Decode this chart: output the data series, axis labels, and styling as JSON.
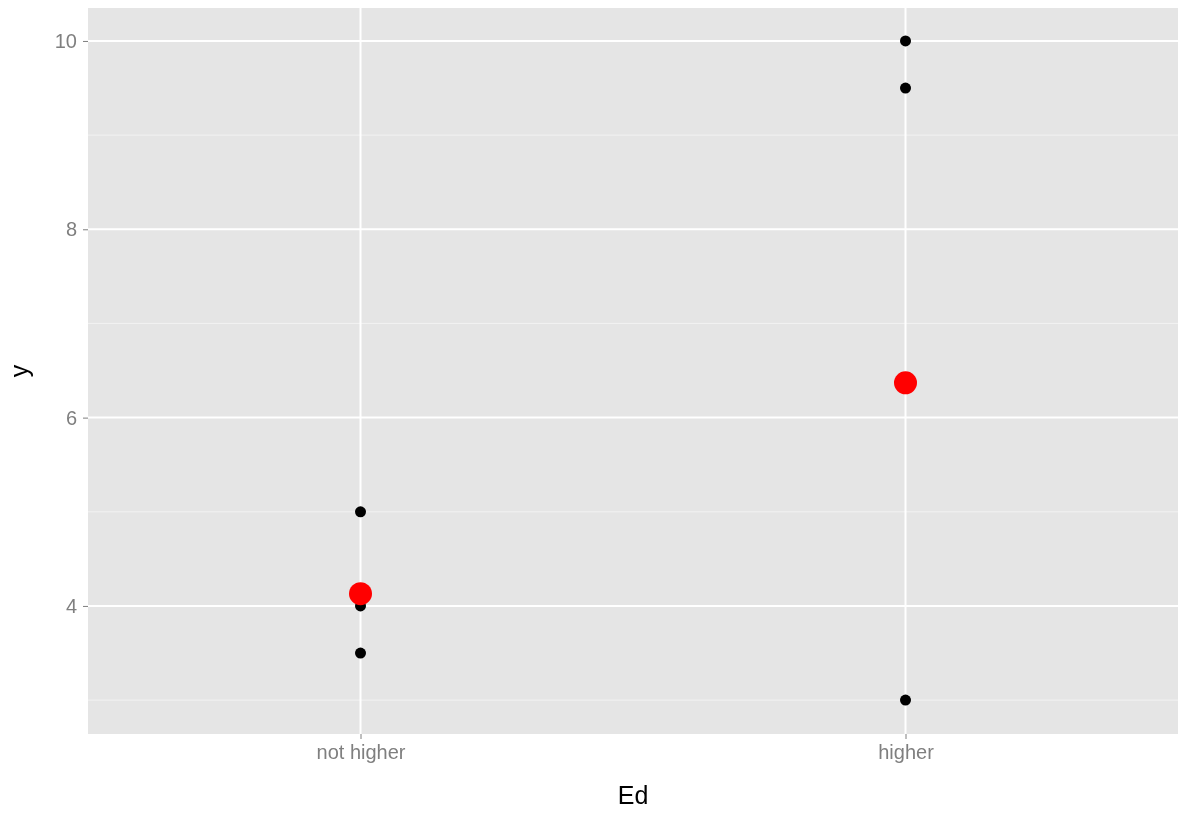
{
  "chart_data": {
    "type": "scatter",
    "xlabel": "Ed",
    "ylabel": "y",
    "categories": [
      "not higher",
      "higher"
    ],
    "series": [
      {
        "color": "#000000",
        "x": [
          "not higher",
          "not higher",
          "not higher",
          "higher",
          "higher",
          "higher"
        ],
        "values": [
          5,
          4,
          3.5,
          10,
          9.5,
          3
        ],
        "marker": "circle"
      },
      {
        "color": "#ff0000",
        "x": [
          "not higher",
          "higher"
        ],
        "values": [
          4.13,
          6.37
        ],
        "marker": "circle"
      }
    ],
    "ylim": [
      2.64,
      10.35
    ],
    "yticks": [
      4,
      6,
      8,
      10
    ],
    "grid": true
  }
}
